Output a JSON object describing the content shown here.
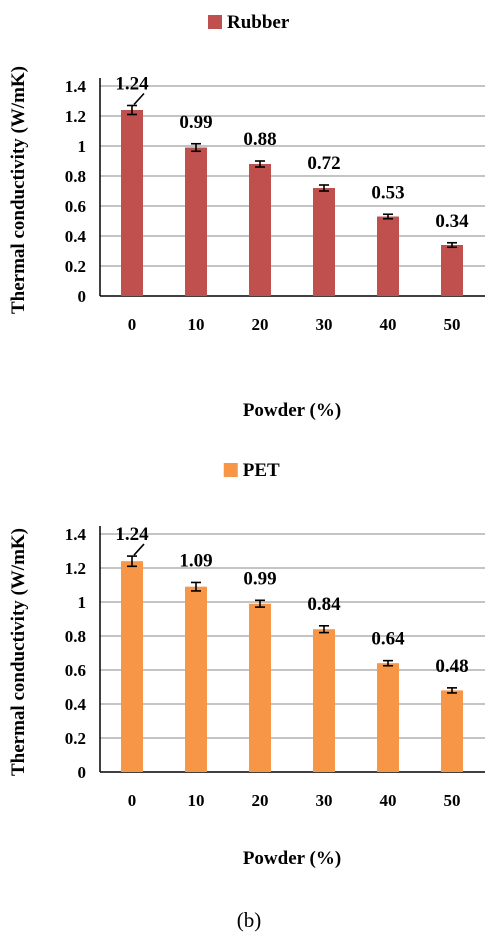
{
  "chart_data": [
    {
      "type": "bar",
      "categories": [
        "0",
        "10",
        "20",
        "30",
        "40",
        "50"
      ],
      "series": [
        {
          "name": "Rubber",
          "values": [
            1.24,
            0.99,
            0.88,
            0.72,
            0.53,
            0.34
          ],
          "errors": [
            0.03,
            0.025,
            0.02,
            0.02,
            0.015,
            0.015
          ],
          "color": "#c0504d"
        }
      ],
      "data_labels": [
        "1.24",
        "0.99",
        "0.88",
        "0.72",
        "0.53",
        "0.34"
      ],
      "xlabel": "Powder (%)",
      "ylabel": "Thermal conductivity (W/mK)",
      "ylim": [
        0,
        1.4
      ],
      "yticks": [
        "0",
        "0.2",
        "0.4",
        "0.6",
        "0.8",
        "1",
        "1.2",
        "1.4"
      ],
      "grid": true,
      "legend": "top"
    },
    {
      "type": "bar",
      "categories": [
        "0",
        "10",
        "20",
        "30",
        "40",
        "50"
      ],
      "series": [
        {
          "name": "PET",
          "values": [
            1.24,
            1.09,
            0.99,
            0.84,
            0.64,
            0.48
          ],
          "errors": [
            0.03,
            0.025,
            0.02,
            0.02,
            0.015,
            0.015
          ],
          "color": "#f79646"
        }
      ],
      "data_labels": [
        "1.24",
        "1.09",
        "0.99",
        "0.84",
        "0.64",
        "0.48"
      ],
      "xlabel": "Powder (%)",
      "ylabel": "Thermal conductivity (W/mK)",
      "ylim": [
        0,
        1.4
      ],
      "yticks": [
        "0",
        "0.2",
        "0.4",
        "0.6",
        "0.8",
        "1",
        "1.2",
        "1.4"
      ],
      "grid": true,
      "legend": "top"
    }
  ],
  "caption": "(b)"
}
